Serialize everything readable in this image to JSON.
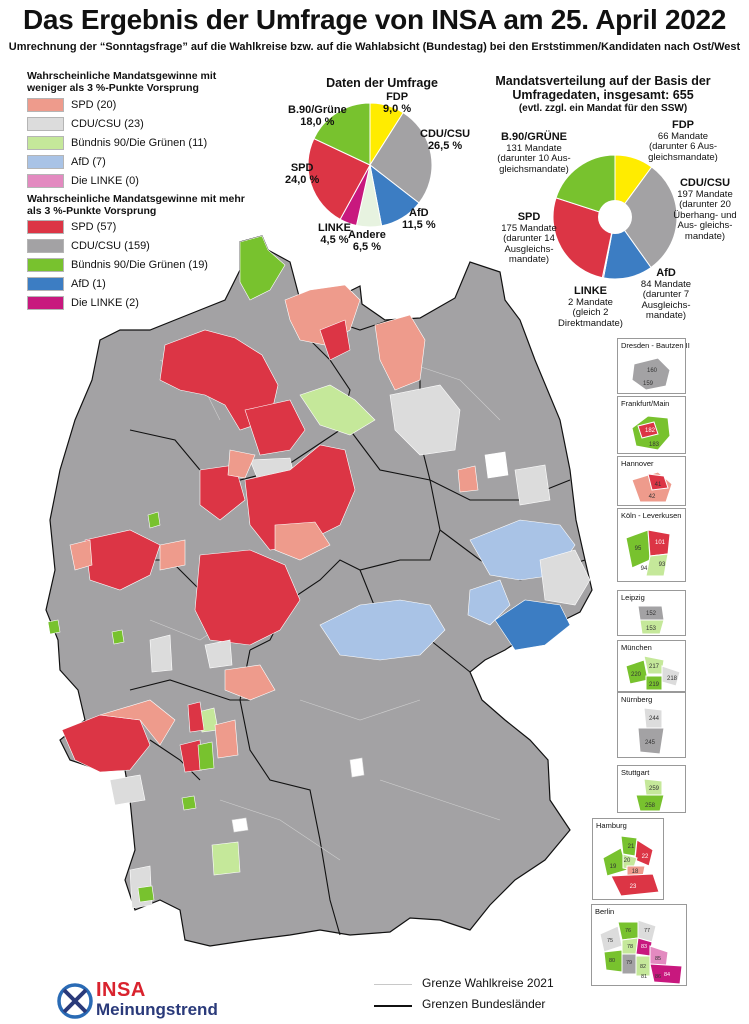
{
  "header": {
    "title": "Das Ergebnis der Umfrage von INSA am 25. April 2022",
    "subtitle": "Umrechnung der “Sonntagsfrage” auf die Wahlkreise bzw. auf die Wahlabsicht (Bundestag) bei den Erststimmen/Kandidaten nach Ost/West"
  },
  "colors": {
    "spd_weak": "#ee9b8c",
    "cdu_weak": "#dcdcdc",
    "gruene_weak": "#c5e89a",
    "afd_weak": "#a9c3e6",
    "linke_weak": "#e38ac0",
    "spd_strong": "#dc3545",
    "cdu_strong": "#a3a2a4",
    "gruene_strong": "#78c22e",
    "afd_strong": "#3c7dc3",
    "linke_strong": "#c8187e",
    "fdp": "#ffec00",
    "andere": "#e7f3e0"
  },
  "legend_weak": {
    "heading": "Wahrscheinliche Mandatsgewinne mit weniger als 3 %-Punkte Vorsprung",
    "items": [
      {
        "label": "SPD (20)",
        "color": "#ee9b8c"
      },
      {
        "label": "CDU/CSU (23)",
        "color": "#dcdcdc"
      },
      {
        "label": "Bündnis 90/Die Grünen (11)",
        "color": "#c5e89a"
      },
      {
        "label": "AfD (7)",
        "color": "#a9c3e6"
      },
      {
        "label": "Die LINKE (0)",
        "color": "#e38ac0"
      }
    ]
  },
  "legend_strong": {
    "heading": "Wahrscheinliche Mandatsgewinne mit mehr als 3 %-Punkte Vorsprung",
    "items": [
      {
        "label": "SPD (57)",
        "color": "#dc3545"
      },
      {
        "label": "CDU/CSU (159)",
        "color": "#a3a2a4"
      },
      {
        "label": "Bündnis 90/Die Grünen (19)",
        "color": "#78c22e"
      },
      {
        "label": "AfD (1)",
        "color": "#3c7dc3"
      },
      {
        "label": "Die LINKE (2)",
        "color": "#c8187e"
      }
    ]
  },
  "poll_pie": {
    "title": "Daten der Umfrage",
    "slices": [
      {
        "party": "FDP",
        "value": 9.0,
        "value_label": "9,0 %",
        "color": "#ffec00"
      },
      {
        "party": "CDU/CSU",
        "value": 26.5,
        "value_label": "26,5 %",
        "color": "#a3a2a4"
      },
      {
        "party": "AfD",
        "value": 11.5,
        "value_label": "11,5 %",
        "color": "#3c7dc3"
      },
      {
        "party": "Andere",
        "value": 6.5,
        "value_label": "6,5 %",
        "color": "#e7f3e0"
      },
      {
        "party": "LINKE",
        "value": 4.5,
        "value_label": "4,5 %",
        "color": "#c8187e"
      },
      {
        "party": "SPD",
        "value": 24.0,
        "value_label": "24,0 %",
        "color": "#dc3545"
      },
      {
        "party": "B.90/Grüne",
        "value": 18.0,
        "value_label": "18,0 %",
        "color": "#78c22e"
      }
    ]
  },
  "seat_pie": {
    "title": "Mandatsverteilung auf der Basis der Umfragedaten, insgesamt: 655",
    "note": "(evtl. zzgl. ein Mandat für den SSW)",
    "slices": [
      {
        "party": "FDP",
        "value": 66,
        "detail": "66 Mandate (darunter 6 Aus- gleichsmandate)",
        "color": "#ffec00"
      },
      {
        "party": "CDU/CSU",
        "value": 197,
        "detail": "197 Mandate (darunter 20 Überhang- und Aus- gleichs- mandate)",
        "color": "#a3a2a4"
      },
      {
        "party": "AfD",
        "value": 84,
        "detail": "84 Mandate (darunter 7 Ausgleichs- mandate)",
        "color": "#3c7dc3"
      },
      {
        "party": "LINKE",
        "value": 2,
        "detail": "2 Mandate (gleich 2 Direktmandate)",
        "color": "#c8187e"
      },
      {
        "party": "SPD",
        "value": 175,
        "detail": "175 Mandate (darunter 14 Ausgleichs- mandate)",
        "color": "#dc3545"
      },
      {
        "party": "B.90/GRÜNE",
        "value": 131,
        "detail": "131 Mandate (darunter 10 Aus- gleichsmandate)",
        "color": "#78c22e"
      }
    ]
  },
  "city_insets": [
    {
      "name": "Dresden - Bautzen II",
      "numbers": [
        "160",
        "159"
      ]
    },
    {
      "name": "Frankfurt/Main",
      "numbers": [
        "182",
        "183"
      ]
    },
    {
      "name": "Hannover",
      "numbers": [
        "41",
        "42"
      ]
    },
    {
      "name": "Köln - Leverkusen",
      "numbers": [
        "95",
        "101",
        "93",
        "94"
      ]
    },
    {
      "name": "Leipzig",
      "numbers": [
        "152",
        "153"
      ]
    },
    {
      "name": "München",
      "numbers": [
        "217",
        "220",
        "218",
        "219"
      ]
    },
    {
      "name": "Nürnberg",
      "numbers": [
        "244",
        "245"
      ]
    },
    {
      "name": "Stuttgart",
      "numbers": [
        "259",
        "258"
      ]
    },
    {
      "name": "Hamburg",
      "numbers": [
        "21",
        "20",
        "22",
        "19",
        "18",
        "23"
      ]
    },
    {
      "name": "Berlin",
      "numbers": [
        "76",
        "75",
        "77",
        "78",
        "80",
        "83",
        "79",
        "84",
        "82",
        "85",
        "86",
        "81"
      ]
    }
  ],
  "map_legend": {
    "wahlkreise": "Grenze Wahlkreise 2021",
    "bundeslaender": "Grenzen Bundesländer"
  },
  "logo": {
    "brand": "INSA",
    "subline": "Meinungstrend"
  }
}
